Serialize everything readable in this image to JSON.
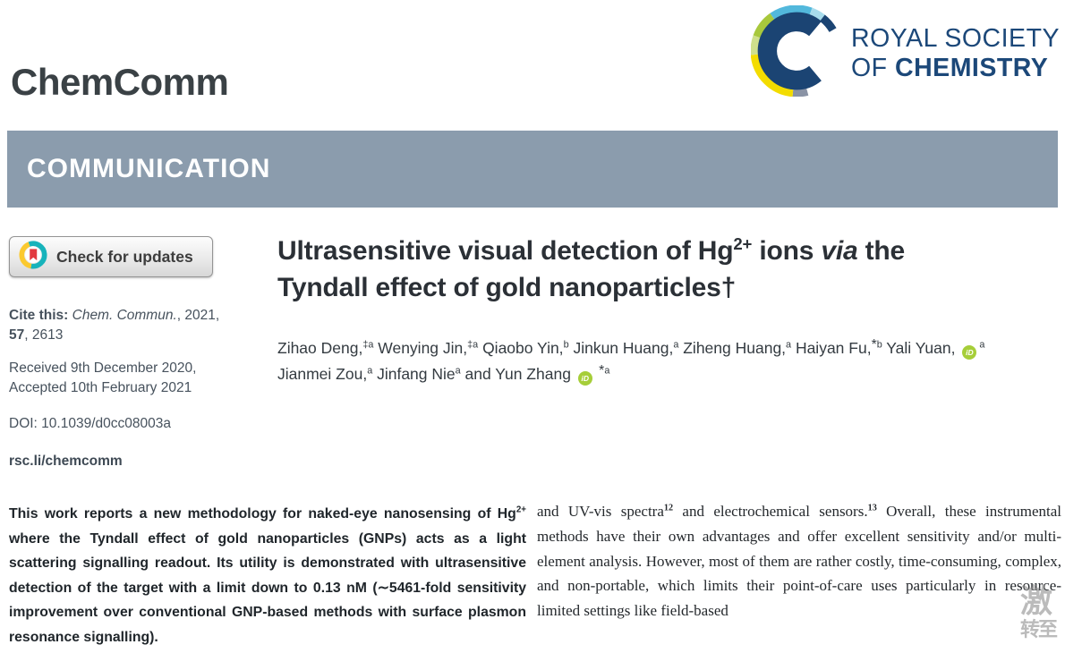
{
  "journal": {
    "name": "ChemComm"
  },
  "banner": {
    "label": "COMMUNICATION"
  },
  "publisher": {
    "line1": "ROYAL SOCIETY",
    "line2_prefix": "OF ",
    "line2_bold": "CHEMISTRY"
  },
  "colors": {
    "banner_bg": "#8b9cad",
    "rsc_navy": "#1c4879",
    "orcid_green": "#a6ce39",
    "crossmark_teal": "#17b3bb",
    "crossmark_yellow": "#fbc92f",
    "crossmark_red": "#e23a3f"
  },
  "check_updates": {
    "label": "Check for updates"
  },
  "citation": {
    "cite_segments": [
      {
        "t": "Cite this: ",
        "s": "b"
      },
      {
        "t": "Chem. Commun.",
        "s": "i"
      },
      {
        "t": ", 2021,"
      },
      {
        "s": "br"
      },
      {
        "t": "57",
        "s": "b"
      },
      {
        "t": ", 2613"
      }
    ],
    "received": "Received 9th December 2020,",
    "accepted": "Accepted 10th February 2021",
    "doi": "DOI: 10.1039/d0cc08003a",
    "link": "rsc.li/chemcomm"
  },
  "article": {
    "title_segments": [
      {
        "t": "Ultrasensitive visual detection of Hg"
      },
      {
        "t": "2+",
        "s": "sup"
      },
      {
        "t": " ions "
      },
      {
        "t": "via",
        "s": "i"
      },
      {
        "t": " the Tyndall effect of gold nanoparticles†"
      }
    ],
    "author_segments": [
      {
        "t": "Zihao Deng,"
      },
      {
        "t": "‡a",
        "s": "sup"
      },
      {
        "t": " Wenying Jin,"
      },
      {
        "t": "‡a",
        "s": "sup"
      },
      {
        "t": " Qiaobo Yin,"
      },
      {
        "t": "b",
        "s": "sup"
      },
      {
        "t": " Jinkun Huang,"
      },
      {
        "t": "a",
        "s": "sup"
      },
      {
        "t": " Ziheng Huang,"
      },
      {
        "t": "a",
        "s": "sup"
      },
      {
        "t": " Haiyan Fu,"
      },
      {
        "t": "*",
        "s": "star"
      },
      {
        "t": "b",
        "s": "sup"
      },
      {
        "t": " Yali Yuan, "
      },
      {
        "t": "iD",
        "s": "orcid"
      },
      {
        "t": "a",
        "s": "sup"
      },
      {
        "t": " Jianmei Zou,"
      },
      {
        "t": "a",
        "s": "sup"
      },
      {
        "t": " Jinfang Nie"
      },
      {
        "t": "a",
        "s": "sup"
      },
      {
        "t": " and Yun Zhang "
      },
      {
        "t": "iD",
        "s": "orcid"
      },
      {
        "t": " *",
        "s": "star"
      },
      {
        "t": "a",
        "s": "sup"
      }
    ]
  },
  "abstract": {
    "segments": [
      {
        "t": "This work reports a new methodology for naked-eye nanosensing of Hg"
      },
      {
        "t": "2+",
        "s": "sup"
      },
      {
        "t": " where the Tyndall effect of gold nanoparticles (GNPs) acts as a light scattering signalling readout. Its utility is demonstrated with ultrasensitive detection of the target with a limit down to 0.13 nM (∼5461-fold sensitivity improvement over conventional GNP-based methods with surface plasmon resonance signalling)."
      }
    ]
  },
  "body_right": {
    "segments": [
      {
        "t": "and UV-vis spectra"
      },
      {
        "t": "12",
        "s": "sup"
      },
      {
        "t": " and electrochemical sensors."
      },
      {
        "t": "13",
        "s": "sup"
      },
      {
        "t": " Overall, these instrumental methods have their own advantages and offer excellent sensitivity and/or multi-element analysis. However, most of them are rather costly, time-consuming, complex, and non-portable, which limits their point-of-care uses particularly in resource-limited settings like field-based"
      }
    ]
  },
  "watermark": {
    "line1": "激",
    "line2": "转至"
  }
}
